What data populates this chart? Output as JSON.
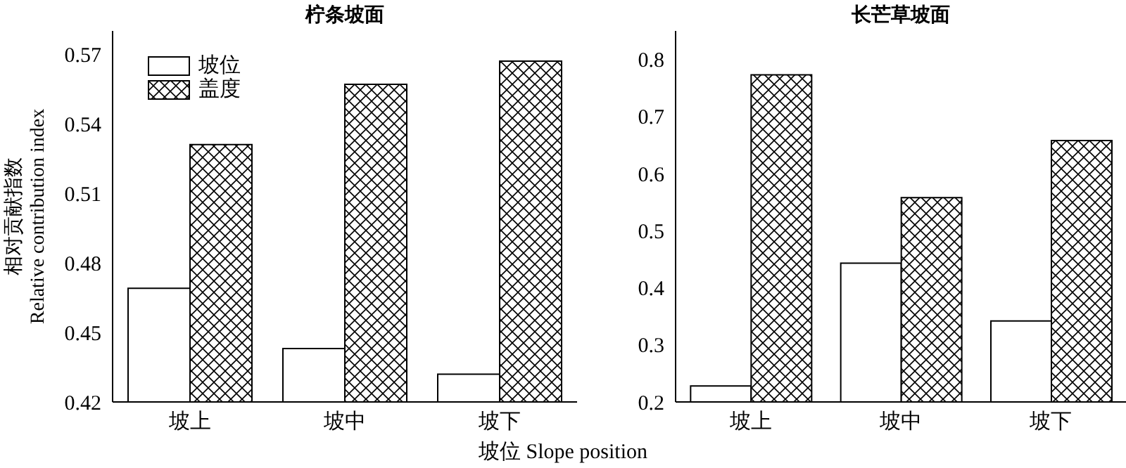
{
  "chart_data": [
    {
      "type": "bar",
      "title": "柠条坡面",
      "xlabel": "坡位 Slope position",
      "ylabel": "相对贡献指数\nRelative contribution index",
      "categories": [
        "坡上",
        "坡中",
        "坡下"
      ],
      "series": [
        {
          "name": "坡位",
          "color": "#ffffff",
          "values": [
            0.469,
            0.443,
            0.432
          ]
        },
        {
          "name": "盖度",
          "color": "#000000",
          "values": [
            0.531,
            0.557,
            0.567
          ]
        }
      ],
      "ylim": [
        0.42,
        0.58
      ],
      "yticks": [
        0.42,
        0.45,
        0.48,
        0.51,
        0.54,
        0.57
      ],
      "grid": false,
      "legend": "top left"
    },
    {
      "type": "bar",
      "title": "长芒草坡面",
      "categories": [
        "坡上",
        "坡中",
        "坡下"
      ],
      "series": [
        {
          "color": "#ffffff",
          "values": [
            0.228,
            0.443,
            0.342
          ]
        },
        {
          "color": "#000000",
          "values": [
            0.773,
            0.558,
            0.658
          ]
        }
      ],
      "ylim": [
        0.2,
        0.85
      ],
      "yticks": [
        0.2,
        0.3,
        0.4,
        0.5,
        0.6,
        0.7,
        0.8
      ],
      "grid": false,
      "legend": false
    }
  ]
}
